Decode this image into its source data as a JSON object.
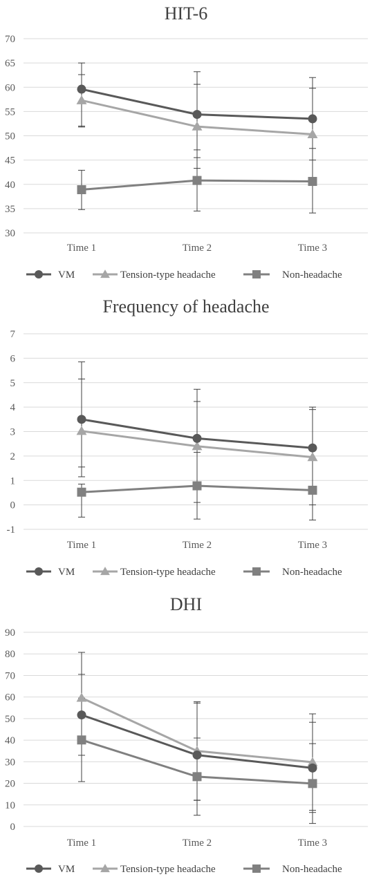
{
  "colors": {
    "VM": "#595959",
    "Tension-type headache": "#a6a6a6",
    "Non-headache": "#808080",
    "grid": "#d9d9d9",
    "errorbar": "#404040"
  },
  "chart_data": [
    {
      "type": "line",
      "title": "HIT-6",
      "categories": [
        "Time 1",
        "Time 2",
        "Time 3"
      ],
      "ylim": [
        30,
        70
      ],
      "yticks": [
        30,
        35,
        40,
        45,
        50,
        55,
        60,
        65,
        70
      ],
      "grid": true,
      "legend": "bottom",
      "series": [
        {
          "name": "VM",
          "marker": "circle",
          "values": [
            59.6,
            54.4,
            53.5
          ],
          "err_low": [
            52.0,
            45.5,
            45.0
          ],
          "err_high": [
            65.0,
            63.2,
            62.0
          ]
        },
        {
          "name": "Tension-type headache",
          "marker": "triangle",
          "values": [
            57.3,
            51.9,
            50.3
          ],
          "err_low": [
            51.8,
            43.3,
            40.7
          ],
          "err_high": [
            62.6,
            60.6,
            59.8
          ]
        },
        {
          "name": "Non-headache",
          "marker": "square",
          "values": [
            38.9,
            40.8,
            40.6
          ],
          "err_low": [
            34.8,
            34.5,
            34.1
          ],
          "err_high": [
            42.9,
            47.1,
            47.4
          ]
        }
      ]
    },
    {
      "type": "line",
      "title": "Frequency of headache",
      "categories": [
        "Time 1",
        "Time 2",
        "Time 3"
      ],
      "ylim": [
        -1,
        7
      ],
      "yticks": [
        -1,
        0,
        1,
        2,
        3,
        4,
        5,
        6,
        7
      ],
      "grid": true,
      "legend": "bottom",
      "series": [
        {
          "name": "VM",
          "marker": "circle",
          "values": [
            3.5,
            2.72,
            2.33
          ],
          "err_low": [
            1.15,
            0.7,
            0.6
          ],
          "err_high": [
            5.85,
            4.73,
            4.0
          ]
        },
        {
          "name": "Tension-type headache",
          "marker": "triangle",
          "values": [
            3.02,
            2.4,
            1.95
          ],
          "err_low": [
            1.55,
            0.1,
            0.0
          ],
          "err_high": [
            5.15,
            4.23,
            3.9
          ]
        },
        {
          "name": "Non-headache",
          "marker": "square",
          "values": [
            0.52,
            0.78,
            0.6
          ],
          "err_low": [
            -0.5,
            -0.58,
            -0.62
          ],
          "err_high": [
            0.85,
            2.15,
            1.82
          ]
        }
      ]
    },
    {
      "type": "line",
      "title": "DHI",
      "categories": [
        "Time 1",
        "Time 2",
        "Time 3"
      ],
      "ylim": [
        0,
        90
      ],
      "yticks": [
        0,
        10,
        20,
        30,
        40,
        50,
        60,
        70,
        80,
        90
      ],
      "grid": true,
      "legend": "bottom",
      "series": [
        {
          "name": "VM",
          "marker": "circle",
          "values": [
            51.7,
            33.1,
            27.1
          ],
          "err_low": [
            33.0,
            12.1,
            6.5
          ],
          "err_high": [
            70.5,
            57.8,
            48.3
          ]
        },
        {
          "name": "Tension-type headache",
          "marker": "triangle",
          "values": [
            59.6,
            35.0,
            29.8
          ],
          "err_low": [
            38.6,
            12.2,
            7.5
          ],
          "err_high": [
            80.7,
            57.2,
            52.2
          ]
        },
        {
          "name": "Non-headache",
          "marker": "square",
          "values": [
            40.1,
            23.1,
            19.9
          ],
          "err_low": [
            20.8,
            5.2,
            1.4
          ],
          "err_high": [
            59.5,
            41.0,
            38.4
          ]
        }
      ]
    }
  ]
}
